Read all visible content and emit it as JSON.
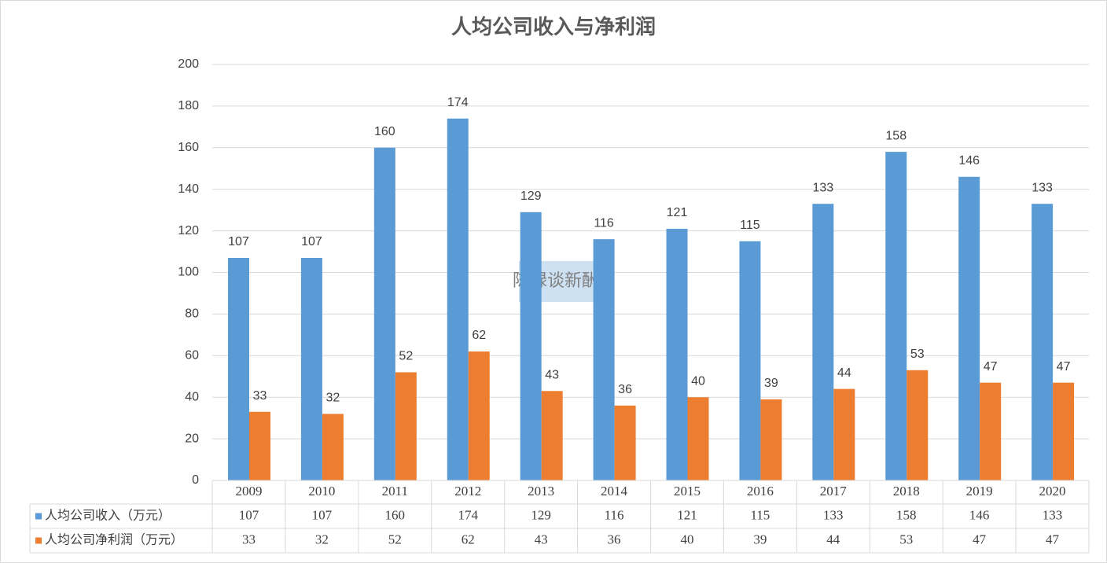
{
  "chart_data": {
    "type": "bar",
    "title": "人均公司收入与净利润",
    "categories": [
      "2009",
      "2010",
      "2011",
      "2012",
      "2013",
      "2014",
      "2015",
      "2016",
      "2017",
      "2018",
      "2019",
      "2020"
    ],
    "series": [
      {
        "name": "人均公司收入（万元）",
        "color": "#5b9bd5",
        "values": [
          107,
          107,
          160,
          174,
          129,
          116,
          121,
          115,
          133,
          158,
          146,
          133
        ]
      },
      {
        "name": "人均公司净利润（万元）",
        "color": "#ed7d31",
        "values": [
          33,
          32,
          52,
          62,
          43,
          36,
          40,
          39,
          44,
          53,
          47,
          47
        ]
      }
    ],
    "ylim": [
      0,
      200
    ],
    "yticks": [
      0,
      20,
      40,
      60,
      80,
      100,
      120,
      140,
      160,
      180,
      200
    ],
    "grid": true,
    "watermark": "陈禄谈新酬"
  }
}
